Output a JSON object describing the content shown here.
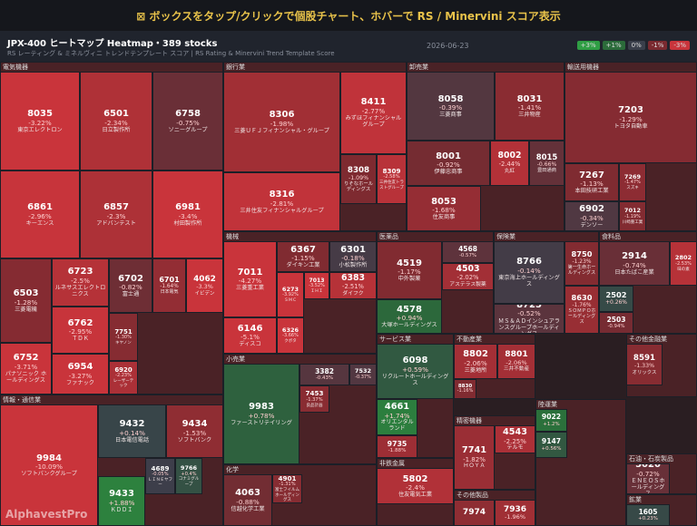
{
  "banner": "⊠ ボックスをタップ/クリックで個股チャート、ホバーで RS / Minervini スコア表示",
  "header": {
    "title": "JPX-400 ヒートマップ Heatmap・389 stocks",
    "subtitle": "RS レーティング & ミネルヴィニ トレンドテンプレート スコア | RS Rating & Minervini Trend Template Score",
    "date": "2026-06-23"
  },
  "legend": [
    {
      "value": 3,
      "label": "+3%",
      "color": "#2f9e44"
    },
    {
      "value": 1,
      "label": "+1%",
      "color": "#2b6b3a"
    },
    {
      "value": 0,
      "label": "0%",
      "color": "#3a3f4b"
    },
    {
      "value": -1,
      "label": "-1%",
      "color": "#7a2a30"
    },
    {
      "value": -3,
      "label": "-3%",
      "color": "#c9343b"
    }
  ],
  "watermark": "AlphavestPro",
  "sectors": [
    {
      "name": "電気機器",
      "tiles": [
        {
          "code": "8035",
          "change": -3.22,
          "change_label": "-3.22%",
          "name": "東京エレクトロン"
        },
        {
          "code": "6501",
          "change": -2.34,
          "change_label": "-2.34%",
          "name": "日立製作所"
        },
        {
          "code": "6758",
          "change": -0.75,
          "change_label": "-0.75%",
          "name": "ソニーグループ"
        },
        {
          "code": "6861",
          "change": -2.96,
          "change_label": "-2.96%",
          "name": "キーエンス"
        },
        {
          "code": "6857",
          "change": -2.3,
          "change_label": "-2.3%",
          "name": "アドバンテスト"
        },
        {
          "code": "6981",
          "change": -3.4,
          "change_label": "-3.4%",
          "name": "村田製作所"
        },
        {
          "code": "6503",
          "change": -1.28,
          "change_label": "-1.28%",
          "name": "三菱電機"
        },
        {
          "code": "6723",
          "change": -2.5,
          "change_label": "-2.5%",
          "name": "ルネサスエレクトロニクス"
        },
        {
          "code": "6762",
          "change": -2.95,
          "change_label": "-2.95%",
          "name": "ＴＤＫ"
        },
        {
          "code": "6702",
          "change": -0.82,
          "change_label": "-0.82%",
          "name": "富士通"
        },
        {
          "code": "6701",
          "change": -1.64,
          "change_label": "-1.64%",
          "name": "日本電気"
        },
        {
          "code": "4062",
          "change": -3.3,
          "change_label": "-3.3%",
          "name": "イビデン"
        },
        {
          "code": "6752",
          "change": -3.71,
          "change_label": "-3.71%",
          "name": "パナソニック ホールディングス"
        },
        {
          "code": "6954",
          "change": -3.27,
          "change_label": "-3.27%",
          "name": "ファナック"
        },
        {
          "code": "7751",
          "change": -1.3,
          "change_label": "-1.30%",
          "name": "キヤノン"
        },
        {
          "code": "6920",
          "change": -2.23,
          "change_label": "-2.23%",
          "name": "レーザーテック"
        }
      ]
    },
    {
      "name": "銀行業",
      "tiles": [
        {
          "code": "8306",
          "change": -1.98,
          "change_label": "-1.98%",
          "name": "三菱ＵＦＪフィナンシャル・グループ"
        },
        {
          "code": "8411",
          "change": -2.77,
          "change_label": "-2.77%",
          "name": "みずほフィナンシャルグループ"
        },
        {
          "code": "8316",
          "change": -2.81,
          "change_label": "-2.81%",
          "name": "三井住友フィナンシャルグループ"
        },
        {
          "code": "8308",
          "change": -1.09,
          "change_label": "-1.09%",
          "name": "りそなホールディングス"
        },
        {
          "code": "8309",
          "change": -2.58,
          "change_label": "-2.58%",
          "name": "三井住友トラストグループ"
        }
      ]
    },
    {
      "name": "卸売業",
      "tiles": [
        {
          "code": "8058",
          "change": -0.39,
          "change_label": "-0.39%",
          "name": "三菱商事"
        },
        {
          "code": "8031",
          "change": -1.41,
          "change_label": "-1.41%",
          "name": "三井物産"
        },
        {
          "code": "8001",
          "change": -0.92,
          "change_label": "-0.92%",
          "name": "伊藤忠商事"
        },
        {
          "code": "8002",
          "change": -2.44,
          "change_label": "-2.44%",
          "name": "丸紅"
        },
        {
          "code": "8015",
          "change": -0.66,
          "change_label": "-0.66%",
          "name": "豊田通商"
        },
        {
          "code": "8053",
          "change": -1.68,
          "change_label": "-1.68%",
          "name": "住友商事"
        }
      ]
    },
    {
      "name": "輸送用機器",
      "tiles": [
        {
          "code": "7203",
          "change": -1.29,
          "change_label": "-1.29%",
          "name": "トヨタ自動車"
        },
        {
          "code": "7267",
          "change": -1.13,
          "change_label": "-1.13%",
          "name": "本田技研工業"
        },
        {
          "code": "7269",
          "change": -1.47,
          "change_label": "-1.47%",
          "name": "スズキ"
        },
        {
          "code": "6902",
          "change": -0.34,
          "change_label": "-0.34%",
          "name": "デンソー"
        },
        {
          "code": "7012",
          "change": -1.19,
          "change_label": "-1.19%",
          "name": "川崎重工業"
        }
      ]
    },
    {
      "name": "機械",
      "tiles": [
        {
          "code": "7011",
          "change": -4.27,
          "change_label": "-4.27%",
          "name": "三菱重工業"
        },
        {
          "code": "6367",
          "change": -1.15,
          "change_label": "-1.15%",
          "name": "ダイキン工業"
        },
        {
          "code": "6301",
          "change": -0.18,
          "change_label": "-0.18%",
          "name": "小松製作所"
        },
        {
          "code": "6273",
          "change": -3.92,
          "change_label": "-3.92%",
          "name": "ＳＭＣ"
        },
        {
          "code": "7013",
          "change": -3.52,
          "change_label": "-3.52%",
          "name": "ＩＨＩ"
        },
        {
          "code": "6383",
          "change": -2.51,
          "change_label": "-2.51%",
          "name": "ダイフク"
        },
        {
          "code": "6146",
          "change": -5.1,
          "change_label": "-5.1%",
          "name": "ディスコ"
        },
        {
          "code": "6326",
          "change": -3.66,
          "change_label": "-3.66%",
          "name": "クボタ"
        }
      ]
    },
    {
      "name": "医薬品",
      "tiles": [
        {
          "code": "4519",
          "change": -1.17,
          "change_label": "-1.17%",
          "name": "中外製薬"
        },
        {
          "code": "4568",
          "change": -0.57,
          "change_label": "-0.57%",
          "name": "第一三共"
        },
        {
          "code": "4503",
          "change": -2.02,
          "change_label": "-2.02%",
          "name": "アステラス製薬"
        },
        {
          "code": "4578",
          "change": 0.94,
          "change_label": "+0.94%",
          "name": "大塚ホールディングス"
        }
      ]
    },
    {
      "name": "保険業",
      "tiles": [
        {
          "code": "8766",
          "change": -0.14,
          "change_label": "-0.14%",
          "name": "東京海上ホールディングス"
        },
        {
          "code": "8725",
          "change": -0.52,
          "change_label": "-0.52%",
          "name": "ＭＳ＆ＡＤインシュアランスグループホールディングス"
        },
        {
          "code": "8750",
          "change": -1.23,
          "change_label": "-1.23%",
          "name": "第一生命ホールディングス"
        },
        {
          "code": "8630",
          "change": -1.76,
          "change_label": "-1.76%",
          "name": "ＳＯＭＰＯホールディングス"
        }
      ]
    },
    {
      "name": "食料品",
      "tiles": [
        {
          "code": "2914",
          "change": -0.74,
          "change_label": "-0.74%",
          "name": "日本たばこ産業"
        },
        {
          "code": "2802",
          "change": -2.53,
          "change_label": "-2.53%",
          "name": "味の素"
        },
        {
          "code": "2502",
          "change": 0.26,
          "change_label": "+0.26%",
          "name": "アサヒグループ"
        },
        {
          "code": "2503",
          "change": -0.94,
          "change_label": "-0.94%",
          "name": "キリンＨＤ"
        }
      ]
    },
    {
      "name": "小売業",
      "tiles": [
        {
          "code": "9983",
          "change": 0.78,
          "change_label": "+0.78%",
          "name": "ファーストリテイリング"
        },
        {
          "code": "3382",
          "change": -0.43,
          "change_label": "-0.43%",
          "name": "セブン＆アイ・ホールディングス"
        },
        {
          "code": "7453",
          "change": -1.37,
          "change_label": "-1.37%",
          "name": "良品計画"
        },
        {
          "code": "7532",
          "change": -0.37,
          "change_label": "-0.37%",
          "name": "パン・パシフィック"
        }
      ]
    },
    {
      "name": "サービス業",
      "tiles": [
        {
          "code": "6098",
          "change": 0.59,
          "change_label": "+0.59%",
          "name": "リクルートホールディングス"
        },
        {
          "code": "4661",
          "change": 1.74,
          "change_label": "+1.74%",
          "name": "オリエンタルランド"
        },
        {
          "code": "9735",
          "change": -1.88,
          "change_label": "-1.88%",
          "name": "セコム"
        }
      ]
    },
    {
      "name": "不動産業",
      "tiles": [
        {
          "code": "8802",
          "change": -2.06,
          "change_label": "-2.06%",
          "name": "三菱地所"
        },
        {
          "code": "8801",
          "change": -2.06,
          "change_label": "-2.06%",
          "name": "三井不動産"
        },
        {
          "code": "8830",
          "change": -1.16,
          "change_label": "-1.16%",
          "name": "住友不動産"
        }
      ]
    },
    {
      "name": "その他金融業",
      "tiles": [
        {
          "code": "8591",
          "change": -1.33,
          "change_label": "-1.33%",
          "name": "オリックス"
        }
      ]
    },
    {
      "name": "情報・通信業",
      "tiles": [
        {
          "code": "9984",
          "change": -10.09,
          "change_label": "-10.09%",
          "name": "ソフトバンクグループ"
        },
        {
          "code": "9432",
          "change": 0.14,
          "change_label": "+0.14%",
          "name": "日本電信電話"
        },
        {
          "code": "9434",
          "change": -1.53,
          "change_label": "-1.53%",
          "name": "ソフトバンク"
        },
        {
          "code": "9433",
          "change": 1.88,
          "change_label": "+1.88%",
          "name": "ＫＤＤＩ"
        },
        {
          "code": "4689",
          "change": -0.05,
          "change_label": "-0.05%",
          "name": "ＬＩＮＥヤフー"
        },
        {
          "code": "9766",
          "change": 0.4,
          "change_label": "+0.4%",
          "name": "コナミグループ"
        }
      ]
    },
    {
      "name": "化学",
      "tiles": [
        {
          "code": "4063",
          "change": -0.88,
          "change_label": "-0.88%",
          "name": "信越化学工業"
        },
        {
          "code": "4901",
          "change": -1.31,
          "change_label": "-1.31%",
          "name": "富士フイルムホールディングス"
        }
      ]
    },
    {
      "name": "非鉄金属",
      "tiles": [
        {
          "code": "5802",
          "change": -2.4,
          "change_label": "-2.4%",
          "name": "住友電気工業"
        }
      ]
    },
    {
      "name": "精密機器",
      "tiles": [
        {
          "code": "7741",
          "change": -1.82,
          "change_label": "-1.82%",
          "name": "ＨＯＹＡ"
        },
        {
          "code": "4543",
          "change": -2.25,
          "change_label": "-2.25%",
          "name": "テルモ"
        }
      ]
    },
    {
      "name": "その他製品",
      "tiles": [
        {
          "code": "7974",
          "change": -1.5
        },
        {
          "code": "7936",
          "change": -1.96,
          "change_label": "-1.96%",
          "name": "アシックス"
        }
      ]
    },
    {
      "name": "陸運業",
      "tiles": [
        {
          "code": "9022",
          "change": 1.2,
          "change_label": "+1.2%",
          "name": "東海旅客鉄道"
        },
        {
          "code": "9147",
          "change": 0.56,
          "change_label": "+0.56%",
          "name": "ＮＩＰＰＯＮ ＥＸＰＲＥＳＳ"
        }
      ]
    },
    {
      "name": "石油・石炭製品",
      "tiles": [
        {
          "code": "5020",
          "change": -0.72,
          "change_label": "-0.72%",
          "name": "ＥＮＥＯＳホールディングス"
        }
      ]
    },
    {
      "name": "鉱業",
      "tiles": [
        {
          "code": "1605",
          "change": 0.23,
          "change_label": "+0.23%",
          "name": "ＩＮＰＥＸ"
        }
      ]
    }
  ]
}
